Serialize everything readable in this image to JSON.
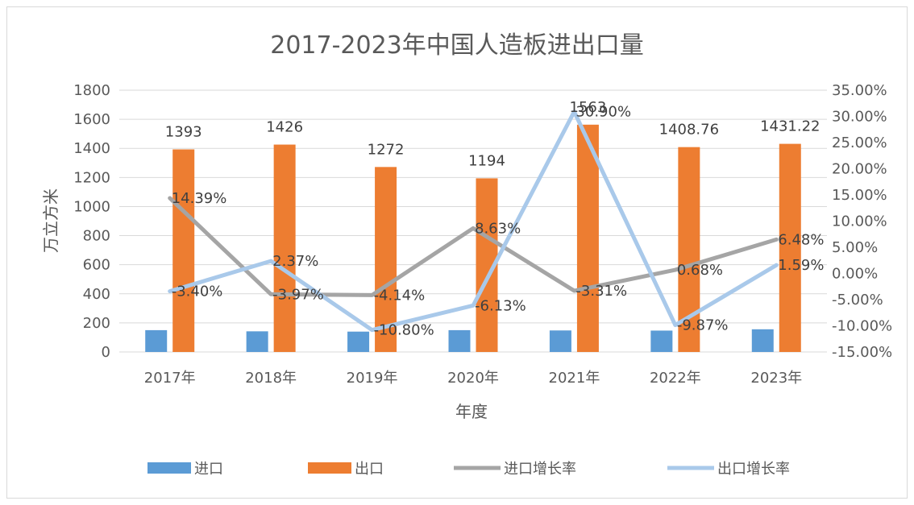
{
  "chart_data": {
    "type": "bar",
    "title": "2017-2023年中国人造板进出口量",
    "xlabel": "年度",
    "ylabel": "万立方米",
    "categories": [
      "2017年",
      "2018年",
      "2019年",
      "2020年",
      "2021年",
      "2022年",
      "2023年"
    ],
    "ylim": [
      0,
      1800
    ],
    "y_ticks": [
      "0",
      "200",
      "400",
      "600",
      "800",
      "1000",
      "1200",
      "1400",
      "1600",
      "1800"
    ],
    "y2lim": [
      -15,
      35
    ],
    "y2_ticks": [
      "-15.00%",
      "-10.00%",
      "-5.00%",
      "0.00%",
      "5.00%",
      "10.00%",
      "15.00%",
      "20.00%",
      "25.00%",
      "30.00%",
      "35.00%"
    ],
    "grid": true,
    "legend_position": "bottom",
    "series": [
      {
        "name": "进口",
        "type": "bar",
        "axis": "left",
        "color": "#5b9bd5",
        "values": [
          150,
          142,
          140,
          150,
          148,
          147,
          156
        ],
        "labels": []
      },
      {
        "name": "出口",
        "type": "bar",
        "axis": "left",
        "color": "#ed7d31",
        "values": [
          1393,
          1426,
          1272,
          1194,
          1563,
          1408.76,
          1431.22
        ],
        "labels": [
          "1393",
          "1426",
          "1272",
          "1194",
          "1563",
          "1408.76",
          "1431.22"
        ]
      },
      {
        "name": "进口增长率",
        "type": "line",
        "axis": "right",
        "color": "#a5a5a5",
        "values": [
          14.39,
          -3.97,
          -4.14,
          8.63,
          -3.31,
          0.68,
          6.48
        ],
        "labels": [
          "14.39%",
          "-3.97%",
          "-4.14%",
          "8.63%",
          "-3.31%",
          "0.68%",
          "6.48%"
        ]
      },
      {
        "name": "出口增长率",
        "type": "line",
        "axis": "right",
        "color": "#a9c9ea",
        "values": [
          -3.4,
          2.37,
          -10.8,
          -6.13,
          30.9,
          -9.87,
          1.59
        ],
        "labels": [
          "-3.40%",
          "2.37%",
          "-10.80%",
          "-6.13%",
          "30.90%",
          "-9.87%",
          "1.59%"
        ]
      }
    ]
  }
}
